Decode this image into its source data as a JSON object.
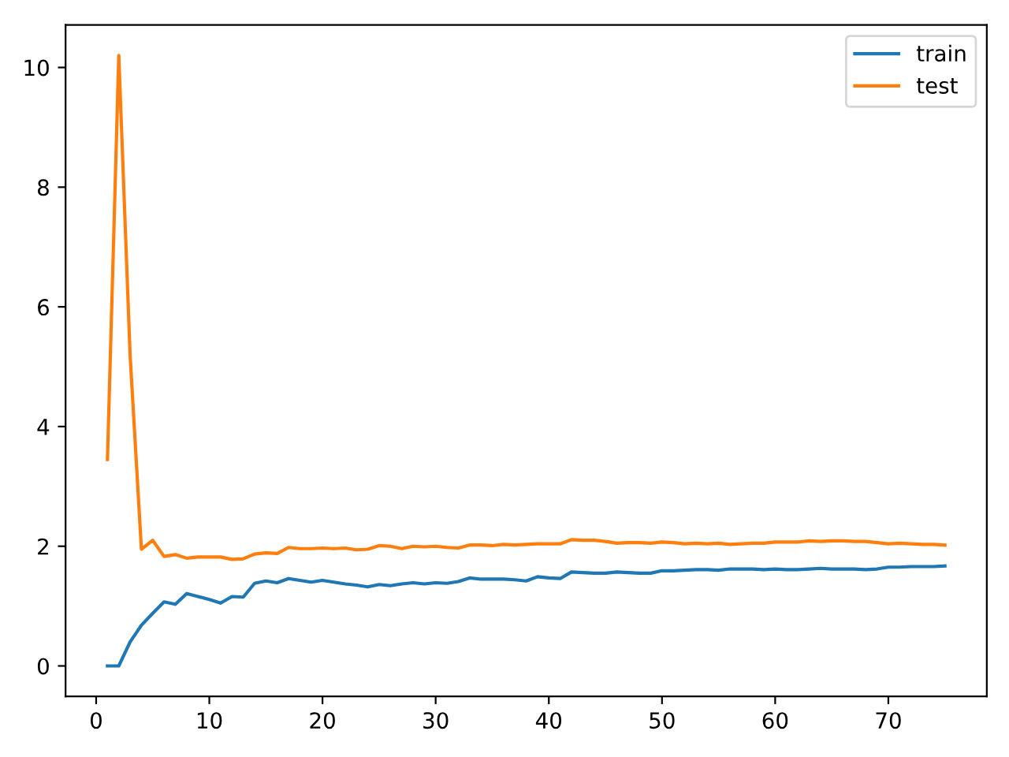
{
  "chart_data": {
    "type": "line",
    "x": [
      1,
      2,
      3,
      4,
      5,
      6,
      7,
      8,
      9,
      10,
      11,
      12,
      13,
      14,
      15,
      16,
      17,
      18,
      19,
      20,
      21,
      22,
      23,
      24,
      25,
      26,
      27,
      28,
      29,
      30,
      31,
      32,
      33,
      34,
      35,
      36,
      37,
      38,
      39,
      40,
      41,
      42,
      43,
      44,
      45,
      46,
      47,
      48,
      49,
      50,
      51,
      52,
      53,
      54,
      55,
      56,
      57,
      58,
      59,
      60,
      61,
      62,
      63,
      64,
      65,
      66,
      67,
      68,
      69,
      70,
      71,
      72,
      73,
      74,
      75
    ],
    "series": [
      {
        "name": "train",
        "color": "#1f77b4",
        "values": [
          0,
          0,
          0.4,
          0.68,
          0.88,
          1.07,
          1.03,
          1.21,
          1.16,
          1.11,
          1.05,
          1.16,
          1.15,
          1.38,
          1.42,
          1.39,
          1.46,
          1.43,
          1.4,
          1.43,
          1.4,
          1.37,
          1.35,
          1.32,
          1.36,
          1.34,
          1.37,
          1.39,
          1.37,
          1.39,
          1.38,
          1.41,
          1.47,
          1.45,
          1.45,
          1.45,
          1.44,
          1.42,
          1.49,
          1.47,
          1.46,
          1.57,
          1.56,
          1.55,
          1.55,
          1.57,
          1.56,
          1.55,
          1.55,
          1.59,
          1.59,
          1.6,
          1.61,
          1.61,
          1.6,
          1.62,
          1.62,
          1.62,
          1.61,
          1.62,
          1.61,
          1.61,
          1.62,
          1.63,
          1.62,
          1.62,
          1.62,
          1.61,
          1.62,
          1.65,
          1.65,
          1.66,
          1.66,
          1.66,
          1.67
        ]
      },
      {
        "name": "test",
        "color": "#ff7f0e",
        "values": [
          3.45,
          10.2,
          5.2,
          1.95,
          2.1,
          1.83,
          1.86,
          1.8,
          1.82,
          1.82,
          1.82,
          1.78,
          1.79,
          1.87,
          1.89,
          1.88,
          1.98,
          1.96,
          1.96,
          1.97,
          1.96,
          1.97,
          1.94,
          1.95,
          2.01,
          2.0,
          1.96,
          2.0,
          1.99,
          2.0,
          1.98,
          1.97,
          2.02,
          2.02,
          2.01,
          2.03,
          2.02,
          2.03,
          2.04,
          2.04,
          2.04,
          2.11,
          2.1,
          2.1,
          2.08,
          2.05,
          2.06,
          2.06,
          2.05,
          2.07,
          2.06,
          2.04,
          2.05,
          2.04,
          2.05,
          2.03,
          2.04,
          2.05,
          2.05,
          2.07,
          2.07,
          2.07,
          2.09,
          2.08,
          2.09,
          2.09,
          2.08,
          2.08,
          2.06,
          2.04,
          2.05,
          2.04,
          2.03,
          2.03,
          2.02
        ]
      }
    ],
    "xlim": [
      -2.7,
      78.7
    ],
    "ylim": [
      -0.51,
      10.71
    ],
    "xticks": [
      0,
      10,
      20,
      30,
      40,
      50,
      60,
      70
    ],
    "yticks": [
      0,
      2,
      4,
      6,
      8,
      10
    ],
    "legend": "top right",
    "grid": false,
    "line_style": "solid"
  }
}
